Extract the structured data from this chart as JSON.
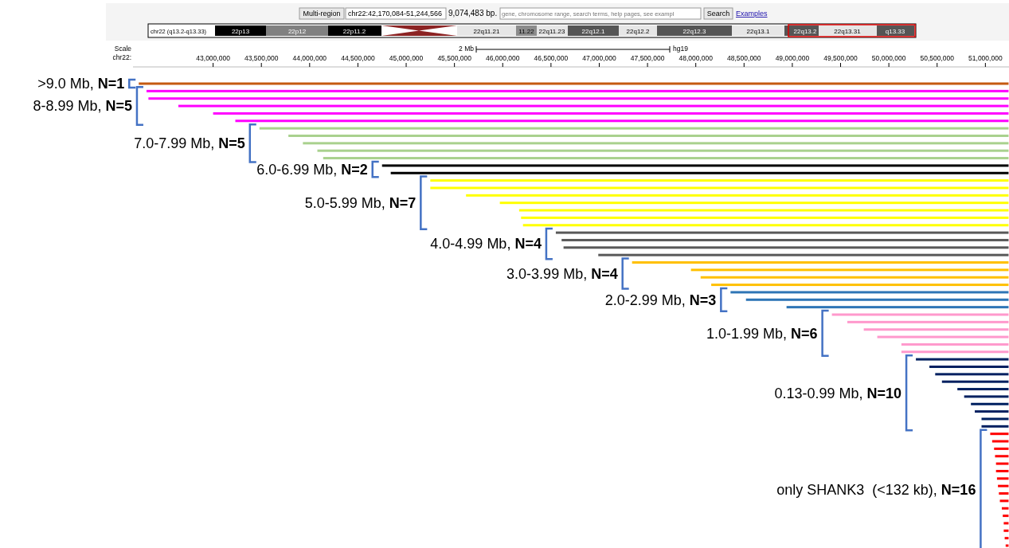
{
  "chart_data": {
    "type": "bar",
    "orientation": "horizontal",
    "tick_labels": "x",
    "xlim": [
      42170084,
      51244566
    ],
    "xticks": [
      {
        "value": 43000000,
        "label": "43,000,000"
      },
      {
        "value": 43500000,
        "label": "43,500,000"
      },
      {
        "value": 44000000,
        "label": "44,000,000"
      },
      {
        "value": 44500000,
        "label": "44,500,000"
      },
      {
        "value": 45000000,
        "label": "45,000,000"
      },
      {
        "value": 45500000,
        "label": "45,500,000"
      },
      {
        "value": 46000000,
        "label": "46,000,000"
      },
      {
        "value": 46500000,
        "label": "46,500,000"
      },
      {
        "value": 47000000,
        "label": "47,000,000"
      },
      {
        "value": 47500000,
        "label": "47,500,000"
      },
      {
        "value": 48000000,
        "label": "48,000,000"
      },
      {
        "value": 48500000,
        "label": "48,500,000"
      },
      {
        "value": 49000000,
        "label": "49,000,000"
      },
      {
        "value": 49500000,
        "label": "49,500,000"
      },
      {
        "value": 50000000,
        "label": "50,000,000"
      },
      {
        "value": 50500000,
        "label": "50,500,000"
      },
      {
        "value": 51000000,
        "label": "51,000,000"
      }
    ],
    "annotations": [
      "Multi-region",
      "chr22:42,170,084-51,244,566",
      "9,074,483 bp.",
      "gene, chromosome range, search terms, help pages, see exampl",
      "Search",
      "Examples",
      "chr22 (q13.2-q13.33)",
      "22p13",
      "22p12",
      "22p11.2",
      "22q11.21",
      "11.22",
      "22q11.23",
      "22q12.1",
      "22q12.2",
      "22q12.3",
      "22q13.1",
      "22q13.2",
      "22q13.31",
      "q13.33",
      "Scale",
      "chr22:",
      "2 Mb",
      "hg19",
      ">9.0 Mb, N=1",
      "8-8.99 Mb, N=5",
      "7.0-7.99 Mb, N=5",
      "6.0-6.99 Mb, N=2",
      "5.0-5.99 Mb, N=7",
      "4.0-4.99 Mb, N=4",
      "3.0-3.99 Mb, N=4",
      "2.0-2.99 Mb, N=3",
      "1.0-1.99 Mb, N=6",
      "0.13-0.99 Mb, N=10",
      "only SHANK3  (<132 kb), N=16"
    ],
    "categories": [
      null,
      null,
      null,
      null,
      null,
      null,
      null,
      null,
      null,
      null,
      null,
      null,
      null,
      null,
      null,
      null,
      null,
      null,
      null,
      null,
      null,
      null,
      null,
      null,
      null,
      null,
      null,
      null,
      null,
      null,
      null,
      null,
      null,
      null,
      null,
      null,
      null,
      null,
      null,
      null,
      null,
      null,
      null,
      null,
      null,
      null,
      null,
      null,
      null,
      null,
      null,
      null,
      null,
      null,
      null,
      null,
      null,
      null,
      null,
      null,
      null,
      null,
      null
    ],
    "base": [
      42230000,
      42310000,
      42330000,
      42640000,
      43000000,
      43230000,
      43480000,
      43780000,
      43930000,
      44080000,
      44140000,
      44750000,
      44840000,
      45250000,
      45250000,
      45620000,
      45970000,
      46170000,
      46190000,
      46210000,
      46550000,
      46610000,
      46630000,
      46990000,
      47340000,
      47950000,
      48050000,
      48160000,
      48360000,
      48520000,
      48940000,
      49410000,
      49570000,
      49740000,
      49880000,
      50130000,
      50130000,
      50280000,
      50420000,
      50480000,
      50550000,
      50710000,
      50780000,
      50850000,
      50890000,
      50960000,
      50960000,
      51050000,
      51070000,
      51090000,
      51100000,
      51110000,
      51110000,
      51120000,
      51130000,
      51140000,
      51150000,
      51170000,
      51180000,
      51190000,
      51190000,
      51200000,
      51210000
    ],
    "values": [
      9010000,
      8930000,
      8910000,
      8600000,
      8240000,
      8010000,
      7760000,
      7460000,
      7310000,
      7160000,
      7100000,
      6490000,
      6400000,
      5990000,
      5990000,
      5620000,
      5270000,
      5070000,
      5050000,
      5030000,
      4690000,
      4630000,
      4610000,
      4250000,
      3900000,
      3290000,
      3190000,
      3080000,
      2880000,
      2720000,
      2300000,
      1830000,
      1670000,
      1500000,
      1360000,
      1110000,
      1110000,
      960000,
      820000,
      760000,
      690000,
      530000,
      460000,
      390000,
      350000,
      280000,
      280000,
      190000,
      170000,
      150000,
      140000,
      130000,
      130000,
      120000,
      110000,
      100000,
      90000,
      70000,
      60000,
      50000,
      50000,
      40000,
      30000
    ],
    "colors": [
      "#c55a11",
      "#ff00ff",
      "#ff00ff",
      "#ff00ff",
      "#ff00ff",
      "#ff00ff",
      "#a9d18e",
      "#a9d18e",
      "#a9d18e",
      "#a9d18e",
      "#a9d18e",
      "#000000",
      "#000000",
      "#ffff00",
      "#ffff00",
      "#ffff00",
      "#ffff00",
      "#ffff00",
      "#ffff00",
      "#ffff00",
      "#595959",
      "#595959",
      "#595959",
      "#595959",
      "#ffc000",
      "#ffc000",
      "#ffc000",
      "#ffc000",
      "#2e75b6",
      "#2e75b6",
      "#2e75b6",
      "#ff99cc",
      "#ff99cc",
      "#ff99cc",
      "#ff99cc",
      "#ff99cc",
      "#ff99cc",
      "#002060",
      "#002060",
      "#002060",
      "#002060",
      "#002060",
      "#002060",
      "#002060",
      "#002060",
      "#002060",
      "#002060",
      "#ff0000",
      "#ff0000",
      "#ff0000",
      "#ff0000",
      "#ff0000",
      "#ff0000",
      "#ff0000",
      "#ff0000",
      "#ff0000",
      "#ff0000",
      "#ff0000",
      "#ff0000",
      "#ff0000",
      "#ff0000",
      "#ff0000",
      "#ff0000"
    ]
  }
}
